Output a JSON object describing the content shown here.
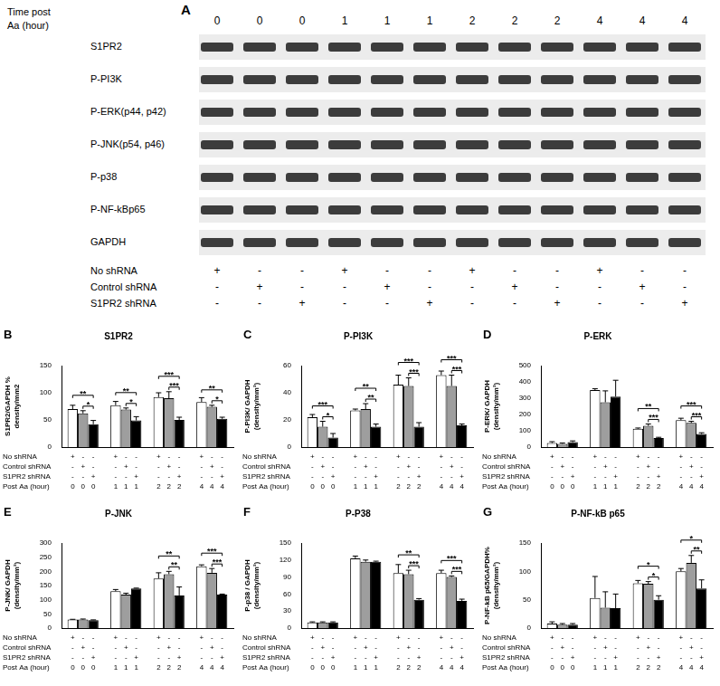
{
  "blot": {
    "panel": "A",
    "header": [
      "Time post",
      "Aa (hour)"
    ],
    "lanes": [
      0,
      0,
      0,
      1,
      1,
      1,
      2,
      2,
      2,
      4,
      4,
      4
    ],
    "bands": [
      "S1PR2",
      "P-PI3K",
      "P-ERK(p44, p42)",
      "P-JNK(p54, p46)",
      "P-p38",
      "P-NF-kBp65",
      "GAPDH"
    ],
    "conditions": [
      {
        "label": "No shRNA",
        "marks": [
          "+",
          "-",
          "-",
          "+",
          "-",
          "-",
          "+",
          "-",
          "-",
          "+",
          "-",
          "-"
        ]
      },
      {
        "label": "Control shRNA",
        "marks": [
          "-",
          "+",
          "-",
          "-",
          "+",
          "-",
          "-",
          "+",
          "-",
          "-",
          "+",
          "-"
        ]
      },
      {
        "label": "S1PR2 shRNA",
        "marks": [
          "-",
          "-",
          "+",
          "-",
          "-",
          "+",
          "-",
          "-",
          "+",
          "-",
          "-",
          "+"
        ]
      }
    ]
  },
  "table_marks": {
    "present": "+",
    "absent": "-"
  },
  "chart_data": [
    {
      "type": "bar",
      "panel": "B",
      "title": "S1PR2",
      "y_label": [
        "S1PR2/GAPDH %",
        "density/mm2"
      ],
      "x_label": "Post Aa (hour)",
      "categories": [
        0,
        1,
        2,
        4
      ],
      "ylim": [
        0,
        150
      ],
      "yticks": [
        0,
        50,
        100,
        150
      ],
      "grid": false,
      "series": [
        {
          "name": "No shRNA",
          "color": "#ffffff",
          "values": [
            70,
            77,
            92,
            83
          ],
          "errors": [
            7,
            7,
            8,
            8
          ]
        },
        {
          "name": "Control shRNA",
          "color": "#9e9e9e",
          "values": [
            62,
            69,
            90,
            74
          ],
          "errors": [
            5,
            3,
            12,
            3
          ]
        },
        {
          "name": "S1PR2 shRNA",
          "color": "#000000",
          "values": [
            42,
            49,
            50,
            52
          ],
          "errors": [
            7,
            7,
            5,
            3
          ]
        }
      ],
      "significance": [
        {
          "category": 0,
          "between": [
            0,
            2
          ],
          "label": "**"
        },
        {
          "category": 0,
          "between": [
            1,
            2
          ],
          "label": "*"
        },
        {
          "category": 1,
          "between": [
            0,
            2
          ],
          "label": "**"
        },
        {
          "category": 1,
          "between": [
            1,
            2
          ],
          "label": "*"
        },
        {
          "category": 2,
          "between": [
            0,
            2
          ],
          "label": "***"
        },
        {
          "category": 2,
          "between": [
            1,
            2
          ],
          "label": "***"
        },
        {
          "category": 3,
          "between": [
            0,
            2
          ],
          "label": "**"
        },
        {
          "category": 3,
          "between": [
            1,
            2
          ],
          "label": "*"
        }
      ]
    },
    {
      "type": "bar",
      "panel": "C",
      "title": "P-PI3K",
      "y_label": [
        "P-PI3K/ GAPDH",
        "(density/mm²)"
      ],
      "x_label": "Post Aa (hour)",
      "categories": [
        0,
        1,
        2,
        4
      ],
      "ylim": [
        0,
        60
      ],
      "yticks": [
        0,
        20,
        40,
        60
      ],
      "grid": false,
      "series": [
        {
          "name": "No shRNA",
          "color": "#ffffff",
          "values": [
            22,
            27,
            46,
            53
          ],
          "errors": [
            2,
            1,
            7,
            3
          ]
        },
        {
          "name": "Control shRNA",
          "color": "#9e9e9e",
          "values": [
            15,
            28,
            45,
            45
          ],
          "errors": [
            4,
            4,
            6,
            8
          ]
        },
        {
          "name": "S1PR2 shRNA",
          "color": "#000000",
          "values": [
            7,
            15,
            15,
            16
          ],
          "errors": [
            3,
            2,
            3,
            1
          ]
        }
      ],
      "significance": [
        {
          "category": 0,
          "between": [
            0,
            2
          ],
          "label": "***"
        },
        {
          "category": 0,
          "between": [
            1,
            2
          ],
          "label": "*"
        },
        {
          "category": 1,
          "between": [
            0,
            2
          ],
          "label": "**"
        },
        {
          "category": 1,
          "between": [
            1,
            2
          ],
          "label": "**"
        },
        {
          "category": 2,
          "between": [
            0,
            2
          ],
          "label": "***"
        },
        {
          "category": 2,
          "between": [
            1,
            2
          ],
          "label": "***"
        },
        {
          "category": 3,
          "between": [
            0,
            2
          ],
          "label": "***"
        },
        {
          "category": 3,
          "between": [
            1,
            2
          ],
          "label": "***"
        }
      ]
    },
    {
      "type": "bar",
      "panel": "D",
      "title": "P-ERK",
      "y_label": [
        "P-ERK/ GAPDH",
        "(density/mm²)"
      ],
      "x_label": "Post Aa (hour)",
      "categories": [
        0,
        1,
        2,
        4
      ],
      "ylim": [
        0,
        500
      ],
      "yticks": [
        0,
        100,
        200,
        300,
        400,
        500
      ],
      "grid": false,
      "series": [
        {
          "name": "No shRNA",
          "color": "#ffffff",
          "values": [
            25,
            350,
            112,
            165
          ],
          "errors": [
            8,
            8,
            5,
            12
          ]
        },
        {
          "name": "Control shRNA",
          "color": "#9e9e9e",
          "values": [
            20,
            275,
            130,
            148
          ],
          "errors": [
            5,
            70,
            12,
            10
          ]
        },
        {
          "name": "S1PR2 shRNA",
          "color": "#000000",
          "values": [
            30,
            310,
            55,
            80
          ],
          "errors": [
            8,
            100,
            5,
            8
          ]
        }
      ],
      "significance": [
        {
          "category": 2,
          "between": [
            0,
            2
          ],
          "label": "**"
        },
        {
          "category": 2,
          "between": [
            1,
            2
          ],
          "label": "***"
        },
        {
          "category": 3,
          "between": [
            0,
            2
          ],
          "label": "***"
        },
        {
          "category": 3,
          "between": [
            1,
            2
          ],
          "label": "***"
        }
      ]
    },
    {
      "type": "bar",
      "panel": "E",
      "title": "P-JNK",
      "y_label": [
        "P-JNK/ GAPDH",
        "(density/mm²)"
      ],
      "x_label": "Post Aa (hour)",
      "categories": [
        0,
        1,
        2,
        4
      ],
      "ylim": [
        0,
        300
      ],
      "yticks": [
        0,
        50,
        100,
        150,
        200,
        250,
        300
      ],
      "grid": false,
      "series": [
        {
          "name": "No shRNA",
          "color": "#ffffff",
          "values": [
            30,
            130,
            175,
            218
          ],
          "errors": [
            1,
            6,
            20,
            5
          ]
        },
        {
          "name": "Control shRNA",
          "color": "#9e9e9e",
          "values": [
            30,
            118,
            190,
            195
          ],
          "errors": [
            2,
            5,
            10,
            15
          ]
        },
        {
          "name": "S1PR2 shRNA",
          "color": "#000000",
          "values": [
            28,
            140,
            115,
            118
          ],
          "errors": [
            1,
            1,
            30,
            2
          ]
        }
      ],
      "significance": [
        {
          "category": 2,
          "between": [
            0,
            2
          ],
          "label": "**"
        },
        {
          "category": 2,
          "between": [
            1,
            2
          ],
          "label": "**"
        },
        {
          "category": 3,
          "between": [
            0,
            2
          ],
          "label": "***"
        },
        {
          "category": 3,
          "between": [
            1,
            2
          ],
          "label": "***"
        }
      ]
    },
    {
      "type": "bar",
      "panel": "F",
      "title": "P-P38",
      "y_label": [
        "P-p38 / GAPDH",
        "(density/mm²)"
      ],
      "x_label": "Post Aa (hour)",
      "categories": [
        0,
        1,
        2,
        4
      ],
      "ylim": [
        0,
        150
      ],
      "yticks": [
        0,
        30,
        60,
        90,
        120,
        150
      ],
      "grid": false,
      "series": [
        {
          "name": "No shRNA",
          "color": "#ffffff",
          "values": [
            10,
            123,
            97,
            97
          ],
          "errors": [
            1,
            4,
            15,
            5
          ]
        },
        {
          "name": "Control shRNA",
          "color": "#9e9e9e",
          "values": [
            10,
            117,
            95,
            90
          ],
          "errors": [
            1,
            3,
            7,
            2
          ]
        },
        {
          "name": "S1PR2 shRNA",
          "color": "#000000",
          "values": [
            10,
            117,
            50,
            48
          ],
          "errors": [
            1,
            1,
            2,
            3
          ]
        }
      ],
      "significance": [
        {
          "category": 2,
          "between": [
            0,
            2
          ],
          "label": "**"
        },
        {
          "category": 2,
          "between": [
            1,
            2
          ],
          "label": "***"
        },
        {
          "category": 3,
          "between": [
            0,
            2
          ],
          "label": "***"
        },
        {
          "category": 3,
          "between": [
            1,
            2
          ],
          "label": "***"
        }
      ]
    },
    {
      "type": "bar",
      "panel": "G",
      "title": "P-NF-kB p65",
      "y_label": [
        "P-NF-kB p65/GAPDH%",
        "(density/mm²)"
      ],
      "x_label": "Post Aa (hour)",
      "categories": [
        0,
        1,
        2,
        4
      ],
      "ylim": [
        0,
        150
      ],
      "yticks": [
        0,
        50,
        100,
        150
      ],
      "grid": false,
      "series": [
        {
          "name": "No shRNA",
          "color": "#ffffff",
          "values": [
            8,
            53,
            79,
            100
          ],
          "errors": [
            3,
            38,
            5,
            5
          ]
        },
        {
          "name": "Control shRNA",
          "color": "#9e9e9e",
          "values": [
            6,
            36,
            78,
            115
          ],
          "errors": [
            2,
            28,
            4,
            13
          ]
        },
        {
          "name": "S1PR2 shRNA",
          "color": "#000000",
          "values": [
            6,
            35,
            50,
            70
          ],
          "errors": [
            2,
            25,
            7,
            15
          ]
        }
      ],
      "significance": [
        {
          "category": 2,
          "between": [
            0,
            2
          ],
          "label": "*"
        },
        {
          "category": 2,
          "between": [
            1,
            2
          ],
          "label": "*"
        },
        {
          "category": 3,
          "between": [
            0,
            2
          ],
          "label": "*"
        },
        {
          "category": 3,
          "between": [
            1,
            2
          ],
          "label": "**"
        }
      ]
    }
  ]
}
